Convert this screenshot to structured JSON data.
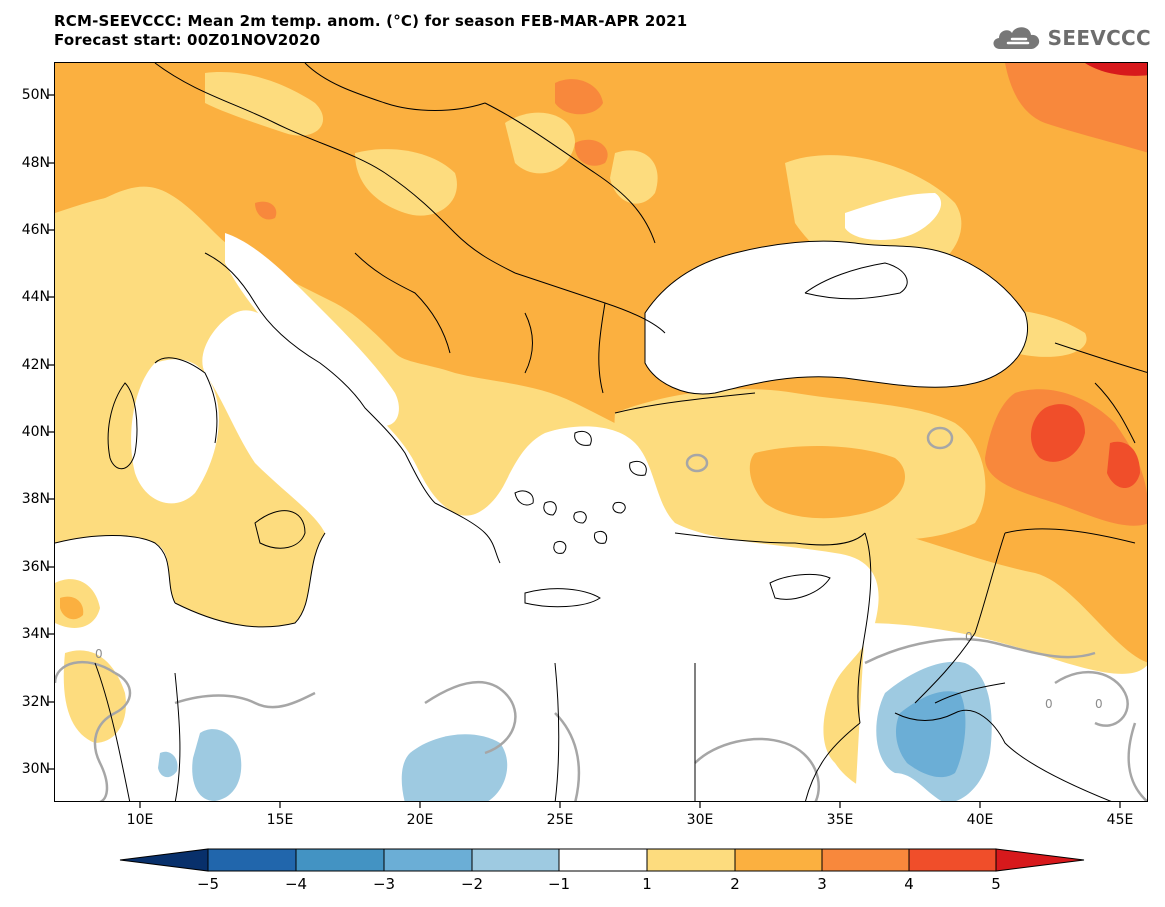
{
  "header": {
    "title_line1": "RCM-SEEVCCC: Mean 2m temp. anom. (°C) for season FEB-MAR-APR 2021",
    "title_line2": "Forecast start: 00Z01NOV2020"
  },
  "logo": {
    "text": "SEEVCCC",
    "icon": "cloud-icon"
  },
  "map": {
    "lon_range": [
      6.8,
      45.8
    ],
    "lat_range": [
      29.0,
      51.0
    ],
    "lat_ticks": [
      "50N",
      "48N",
      "46N",
      "44N",
      "42N",
      "40N",
      "38N",
      "36N",
      "34N",
      "32N",
      "30N"
    ],
    "lon_ticks": [
      "10E",
      "15E",
      "20E",
      "25E",
      "30E",
      "35E",
      "40E",
      "45E"
    ],
    "contour_labels": [
      "0",
      "0",
      "0",
      "0"
    ]
  },
  "colorbar": {
    "labels": [
      "−5",
      "−4",
      "−3",
      "−2",
      "−1",
      "1",
      "2",
      "3",
      "4",
      "5"
    ],
    "colors": [
      "#08306b",
      "#2166ac",
      "#4393c3",
      "#6baed6",
      "#9ecae1",
      "#ffffff",
      "#fddc7e",
      "#fbb040",
      "#f8883c",
      "#f04e2a",
      "#d7191c"
    ]
  }
}
